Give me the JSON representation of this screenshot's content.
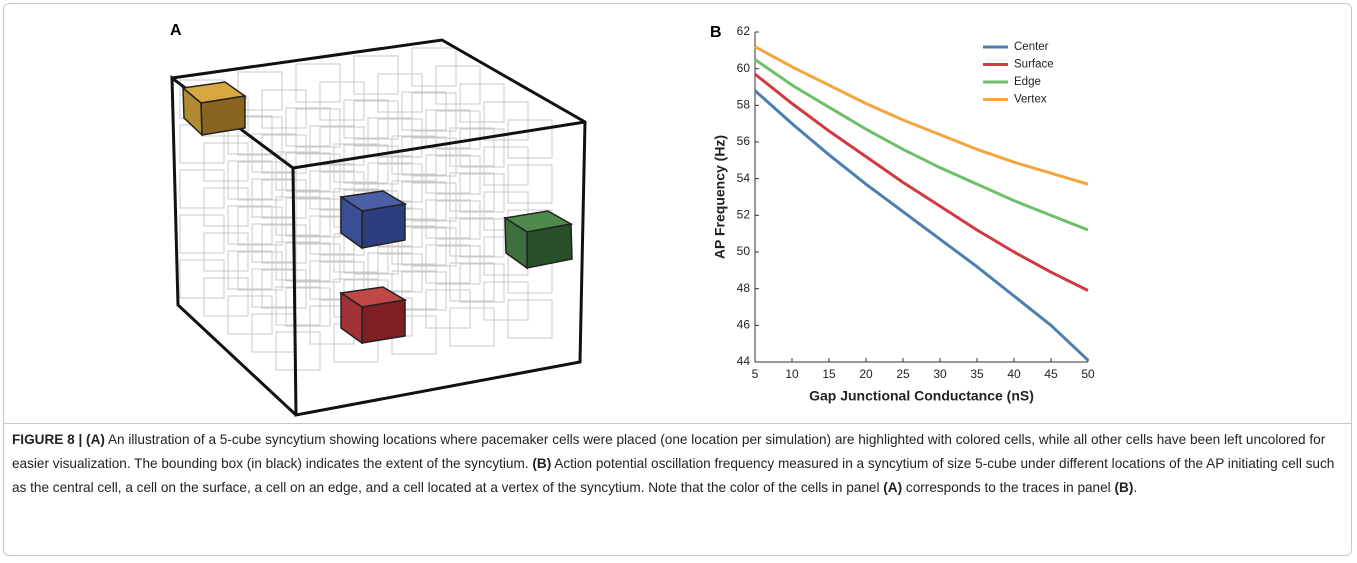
{
  "panels": [
    {
      "label": "A"
    },
    {
      "label": "B"
    }
  ],
  "chart_data": {
    "type": "line",
    "x_label": "Gap Junctional Conductance (nS)",
    "y_label": "AP Frequency (Hz)",
    "x": [
      5,
      10,
      15,
      20,
      25,
      30,
      35,
      40,
      45,
      50
    ],
    "series": [
      {
        "name": "Center",
        "color": "#4a7fb0",
        "values": [
          58.8,
          57.0,
          55.3,
          53.7,
          52.2,
          50.7,
          49.2,
          47.6,
          46.0,
          44.1
        ]
      },
      {
        "name": "Surface",
        "color": "#d13a3f",
        "values": [
          59.7,
          58.1,
          56.6,
          55.2,
          53.8,
          52.5,
          51.2,
          50.0,
          48.9,
          47.9
        ]
      },
      {
        "name": "Edge",
        "color": "#6cc06a",
        "values": [
          60.5,
          59.1,
          57.9,
          56.7,
          55.6,
          54.6,
          53.7,
          52.8,
          52.0,
          51.2
        ]
      },
      {
        "name": "Vertex",
        "color": "#f4a53d",
        "values": [
          61.2,
          60.1,
          59.1,
          58.1,
          57.2,
          56.4,
          55.6,
          54.9,
          54.3,
          53.7
        ]
      }
    ],
    "xlim": [
      5,
      50
    ],
    "xticks": [
      5,
      10,
      15,
      20,
      25,
      30,
      35,
      40,
      45,
      50
    ],
    "ylim": [
      44,
      62
    ],
    "yticks": [
      44,
      46,
      48,
      50,
      52,
      54,
      56,
      58,
      60,
      62
    ],
    "legend": "upper right"
  },
  "caption": {
    "segments": [
      "FIGURE 8 | (A)",
      " An illustration of a 5-cube syncytium showing locations where pacemaker cells were placed (one location per simulation) are highlighted with colored cells, while all other cells have been left uncolored for easier visualization. The bounding box (in black) indicates the extent of the syncytium. ",
      "(B)",
      " Action potential oscillation frequency measured in a syncytium of size 5-cube under different locations of the AP initiating cell such as the central cell, a cell on the surface, a cell on an edge, and a cell located at a vertex of the syncytium. Note that the color of the cells in panel ",
      "(A)",
      " corresponds to the traces in panel ",
      "(B)",
      "."
    ]
  }
}
